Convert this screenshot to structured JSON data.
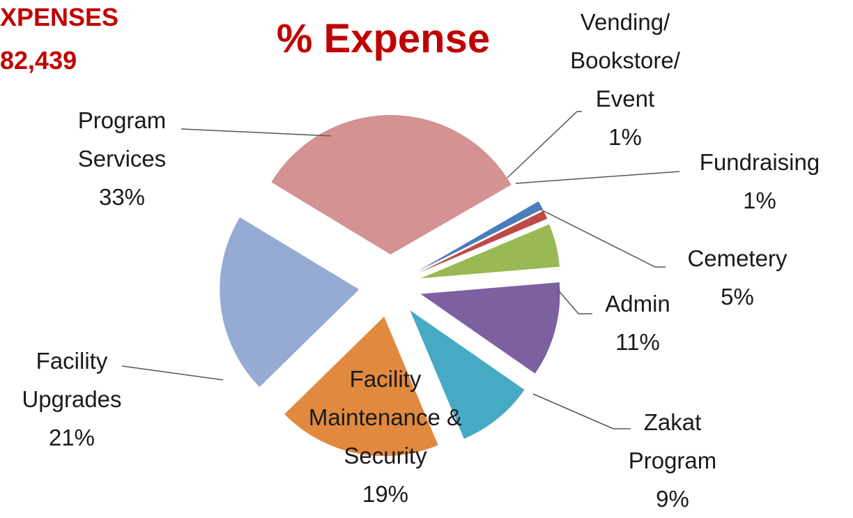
{
  "chart_data": {
    "type": "pie",
    "title": "% Expense",
    "annotations": [
      "XPENSES",
      "82,439"
    ],
    "categories": [
      "Vending/ Bookstore/ Event",
      "Fundraising",
      "Cemetery",
      "Admin",
      "Zakat Program",
      "Facility Maintenance & Security",
      "Facility Upgrades",
      "Program Services"
    ],
    "values": [
      1,
      1,
      5,
      11,
      9,
      19,
      21,
      33
    ],
    "value_labels": [
      "1%",
      "1%",
      "5%",
      "11%",
      "9%",
      "19%",
      "21%",
      "33%"
    ],
    "colors": [
      "#4a7ebb",
      "#be4b48",
      "#98b954",
      "#7d60a0",
      "#46aac5",
      "#e0893f",
      "#95abd4",
      "#d49292"
    ],
    "exploded": true
  }
}
